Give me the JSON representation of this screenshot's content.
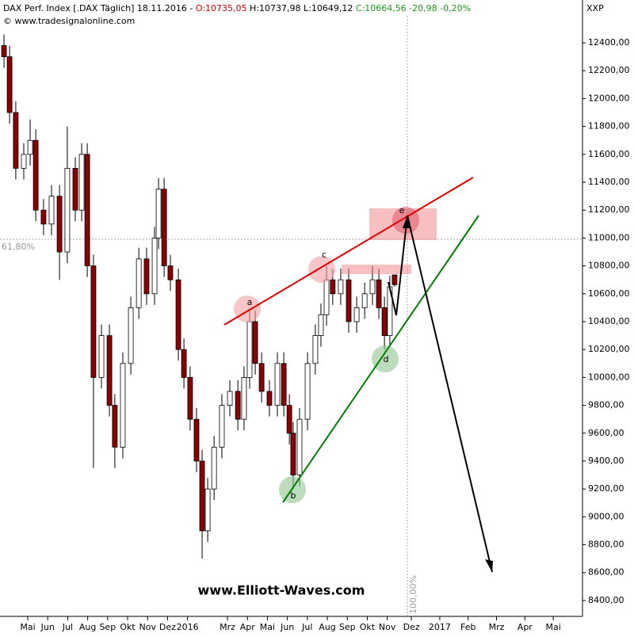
{
  "header": {
    "symbol": "DAX Perf. Index [.DAX  Täglich] 18.11.2016 -",
    "open": "O:10735,05",
    "high_low": "H:10737,98 L:10649,12",
    "close": "C:10664,56 -20,98 -0,20%",
    "copyright": "© www.tradesignalonline.com",
    "exchange": "XXP"
  },
  "chart_data": {
    "type": "candlestick",
    "x": [
      -0.19,
      0.09,
      0.4,
      0.8,
      1.12,
      1.4,
      1.79,
      2.19,
      2.59,
      2.98,
      3.38,
      3.7,
      3.98,
      4.29,
      4.69,
      5.09,
      5.36,
      5.76,
      6.16,
      6.56,
      6.95,
      7.35,
      7.55,
      7.83,
      8.14,
      8.54,
      8.82,
      9.13,
      9.45,
      9.73,
      10.01,
      10.33,
      10.72,
      11.12,
      11.52,
      11.83,
      12.11,
      12.39,
      12.71,
      13.1,
      13.5,
      13.82,
      14.1,
      14.29,
      14.61,
      15.01,
      15.4,
      15.68,
      15.96,
      16.27,
      16.67,
      17.07,
      17.47,
      17.87,
      18.26,
      18.58,
      18.86,
      19.13,
      19.37
    ],
    "open": [
      12380,
      12300,
      11900,
      11500,
      11600,
      11700,
      11200,
      11100,
      11300,
      10900,
      11500,
      11200,
      11600,
      10800,
      10000,
      10300,
      9800,
      9500,
      10100,
      10500,
      10850,
      10600,
      11000,
      11350,
      10800,
      10700,
      10200,
      10000,
      9700,
      9400,
      8900,
      9200,
      9500,
      9800,
      9900,
      9700,
      10000,
      10400,
      10100,
      9900,
      9800,
      10100,
      9800,
      9600,
      9300,
      9700,
      10100,
      10300,
      10450,
      10700,
      10600,
      10700,
      10400,
      10500,
      10600,
      10700,
      10500,
      10300,
      10735
    ],
    "high": [
      12460,
      12380,
      11980,
      11680,
      11850,
      11780,
      11280,
      11380,
      11380,
      11800,
      11580,
      11680,
      11680,
      10880,
      10380,
      10380,
      9880,
      10180,
      10580,
      10930,
      10930,
      11080,
      11430,
      11430,
      10880,
      10780,
      10280,
      10080,
      9780,
      9480,
      9280,
      9580,
      9880,
      9980,
      9980,
      10080,
      10480,
      10480,
      10180,
      9980,
      10180,
      10180,
      9880,
      9680,
      9780,
      10180,
      10380,
      10530,
      10800,
      10780,
      10780,
      10780,
      10580,
      10680,
      10800,
      10780,
      10580,
      10730,
      10738
    ],
    "low": [
      12220,
      11820,
      11420,
      11420,
      11520,
      11120,
      11020,
      11020,
      10700,
      10820,
      11120,
      11120,
      10720,
      9350,
      9920,
      9720,
      9350,
      9420,
      10020,
      10420,
      10520,
      10520,
      10920,
      10720,
      10620,
      10120,
      9920,
      9620,
      9320,
      8700,
      8820,
      9120,
      9420,
      9720,
      9620,
      9620,
      9920,
      10020,
      9820,
      9720,
      9720,
      9720,
      9520,
      9200,
      9220,
      9620,
      10020,
      10220,
      10370,
      10520,
      10520,
      10320,
      10320,
      10420,
      10520,
      10420,
      10200,
      10220,
      10649
    ],
    "close": [
      12300,
      11900,
      11500,
      11600,
      11700,
      11200,
      11100,
      11300,
      10900,
      11500,
      11200,
      11600,
      10800,
      10000,
      10300,
      9800,
      9500,
      10100,
      10500,
      10850,
      10600,
      11000,
      11350,
      10800,
      10700,
      10200,
      10000,
      9700,
      9400,
      8900,
      9200,
      9500,
      9800,
      9900,
      9700,
      10000,
      10400,
      10100,
      9900,
      9800,
      10100,
      9800,
      9600,
      9300,
      9700,
      10100,
      10300,
      10450,
      10700,
      10600,
      10700,
      10400,
      10500,
      10600,
      10700,
      10500,
      10300,
      10650,
      10665
    ],
    "up_color": "#ffffff",
    "down_color": "#8b0000",
    "xlim": [
      -0.39,
      26.03
    ],
    "xticks": [
      {
        "value": 1,
        "label": "Mai"
      },
      {
        "value": 2,
        "label": "Jun"
      },
      {
        "value": 3,
        "label": "Jul"
      },
      {
        "value": 4,
        "label": "Aug"
      },
      {
        "value": 5,
        "label": "Sep"
      },
      {
        "value": 6,
        "label": "Okt"
      },
      {
        "value": 7,
        "label": "Nov"
      },
      {
        "value": 8,
        "label": "Dez"
      },
      {
        "value": 9,
        "label": "2016"
      },
      {
        "value": 11,
        "label": "Mrz"
      },
      {
        "value": 12,
        "label": "Apr"
      },
      {
        "value": 13,
        "label": "Mai"
      },
      {
        "value": 14,
        "label": "Jun"
      },
      {
        "value": 15,
        "label": "Jul"
      },
      {
        "value": 16,
        "label": "Aug"
      },
      {
        "value": 17,
        "label": "Sep"
      },
      {
        "value": 18,
        "label": "Okt"
      },
      {
        "value": 19,
        "label": "Nov"
      },
      {
        "value": 20,
        "label": "Dez"
      },
      {
        "value": 21,
        "label": "2017"
      },
      {
        "value": 22,
        "label": "Feb"
      },
      {
        "value": 23,
        "label": "Mrz"
      },
      {
        "value": 24,
        "label": "Apr"
      },
      {
        "value": 25,
        "label": "Mai"
      }
    ],
    "ylim": [
      8286,
      12707
    ],
    "yticks": [
      {
        "value": 8400,
        "label": "8400,00"
      },
      {
        "value": 8600,
        "label": "8600,00"
      },
      {
        "value": 8800,
        "label": "8800,00"
      },
      {
        "value": 9000,
        "label": "9000,00"
      },
      {
        "value": 9200,
        "label": "9200,00"
      },
      {
        "value": 9400,
        "label": "9400,00"
      },
      {
        "value": 9600,
        "label": "9600,00"
      },
      {
        "value": 9800,
        "label": "9800,00"
      },
      {
        "value": 10000,
        "label": "10000,00"
      },
      {
        "value": 10200,
        "label": "10200,00"
      },
      {
        "value": 10400,
        "label": "10400,00"
      },
      {
        "value": 10600,
        "label": "10600,00"
      },
      {
        "value": 10800,
        "label": "10800,00"
      },
      {
        "value": 11000,
        "label": "11000,00"
      },
      {
        "value": 11200,
        "label": "11200,00"
      },
      {
        "value": 11400,
        "label": "11400,00"
      },
      {
        "value": 11600,
        "label": "11600,00"
      },
      {
        "value": 11800,
        "label": "11800,00"
      },
      {
        "value": 12000,
        "label": "12000,00"
      },
      {
        "value": 12200,
        "label": "12200,00"
      },
      {
        "value": 12400,
        "label": "12400,00"
      }
    ],
    "wave_labels": [
      "a",
      "b",
      "c",
      "d",
      "e"
    ],
    "fib_left": "61,80%",
    "fib_bottom": "100,00%",
    "watermark": "www.Elliott-Waves.com"
  }
}
